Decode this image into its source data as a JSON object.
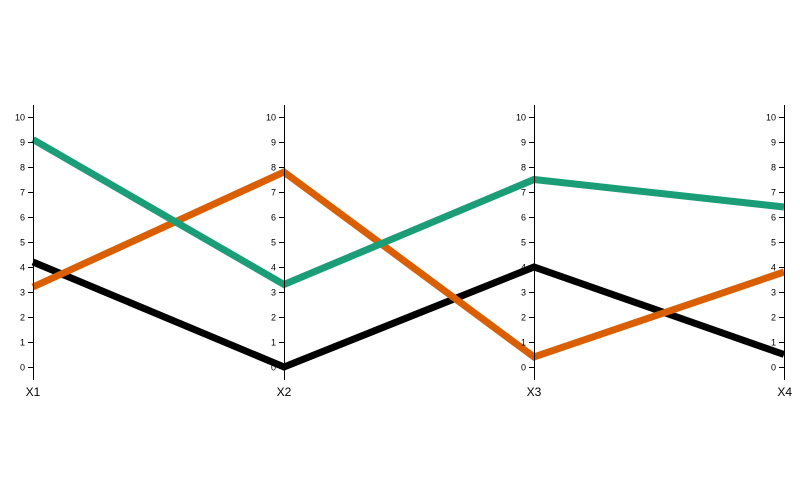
{
  "chart_data": {
    "type": "line",
    "subtype": "parallel-coordinates",
    "categories": [
      "X1",
      "X2",
      "X3",
      "X4"
    ],
    "ylim": [
      0,
      10
    ],
    "ticks": [
      0,
      1,
      2,
      3,
      4,
      5,
      6,
      7,
      8,
      9,
      10
    ],
    "tick_labels": [
      "0",
      "1",
      "2",
      "3",
      "4",
      "5",
      "6",
      "7",
      "8",
      "9",
      "10"
    ],
    "grid": false,
    "legend": "none",
    "series": [
      {
        "values": [
          4.2,
          0.0,
          4.0,
          0.5
        ],
        "color": "#000000"
      },
      {
        "values": [
          3.2,
          7.8,
          0.4,
          3.8
        ],
        "color": "#d95f02"
      },
      {
        "values": [
          9.1,
          3.3,
          7.5,
          6.4
        ],
        "color": "#1b9e77"
      }
    ]
  }
}
